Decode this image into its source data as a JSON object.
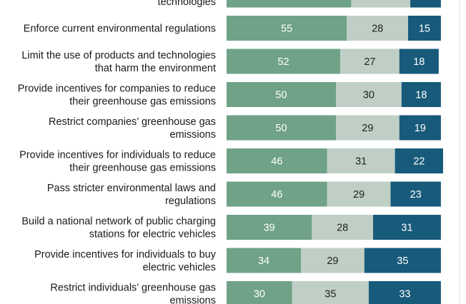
{
  "colors": {
    "seg1": "#6fa287",
    "seg2": "#bfcfc6",
    "seg3": "#175a7a",
    "text_on_light_bar": "#ffffff",
    "text_on_pale_bar": "#222222",
    "text_on_dark_bar": "#ffffff",
    "label_text": "#1a1a1a"
  },
  "chart_data": {
    "type": "bar",
    "orientation": "horizontal",
    "stacked": true,
    "xlim": [
      0,
      100
    ],
    "categories": [
      [
        "",
        "technologies"
      ],
      [
        "Enforce current environmental regulations"
      ],
      [
        "Limit the use of products and technologies",
        "that harm the environment"
      ],
      [
        "Provide incentives for companies to reduce",
        "their greenhouse gas emissions"
      ],
      [
        "Restrict companies’ greenhouse gas",
        "emissions"
      ],
      [
        "Provide incentives for individuals to reduce",
        "their greenhouse gas emissions"
      ],
      [
        "Pass stricter environmental laws and",
        "regulations"
      ],
      [
        "Build a national network of public charging",
        "stations for electric vehicles"
      ],
      [
        "Provide incentives for individuals to buy",
        "electric vehicles"
      ],
      [
        "Restrict individuals’ greenhouse gas",
        "emissions"
      ]
    ],
    "series": [
      {
        "values": [
          57,
          55,
          52,
          50,
          50,
          46,
          46,
          39,
          34,
          30
        ],
        "labels": [
          "",
          "55",
          "52",
          "50",
          "50",
          "46",
          "46",
          "39",
          "34",
          "30"
        ]
      },
      {
        "values": [
          27,
          28,
          27,
          30,
          29,
          31,
          29,
          28,
          29,
          35
        ],
        "labels": [
          "",
          "28",
          "27",
          "30",
          "29",
          "31",
          "29",
          "28",
          "29",
          "35"
        ]
      },
      {
        "values": [
          14,
          15,
          18,
          18,
          19,
          22,
          23,
          31,
          35,
          33
        ],
        "labels": [
          "",
          "15",
          "18",
          "18",
          "19",
          "22",
          "23",
          "31",
          "35",
          "33"
        ]
      }
    ]
  }
}
